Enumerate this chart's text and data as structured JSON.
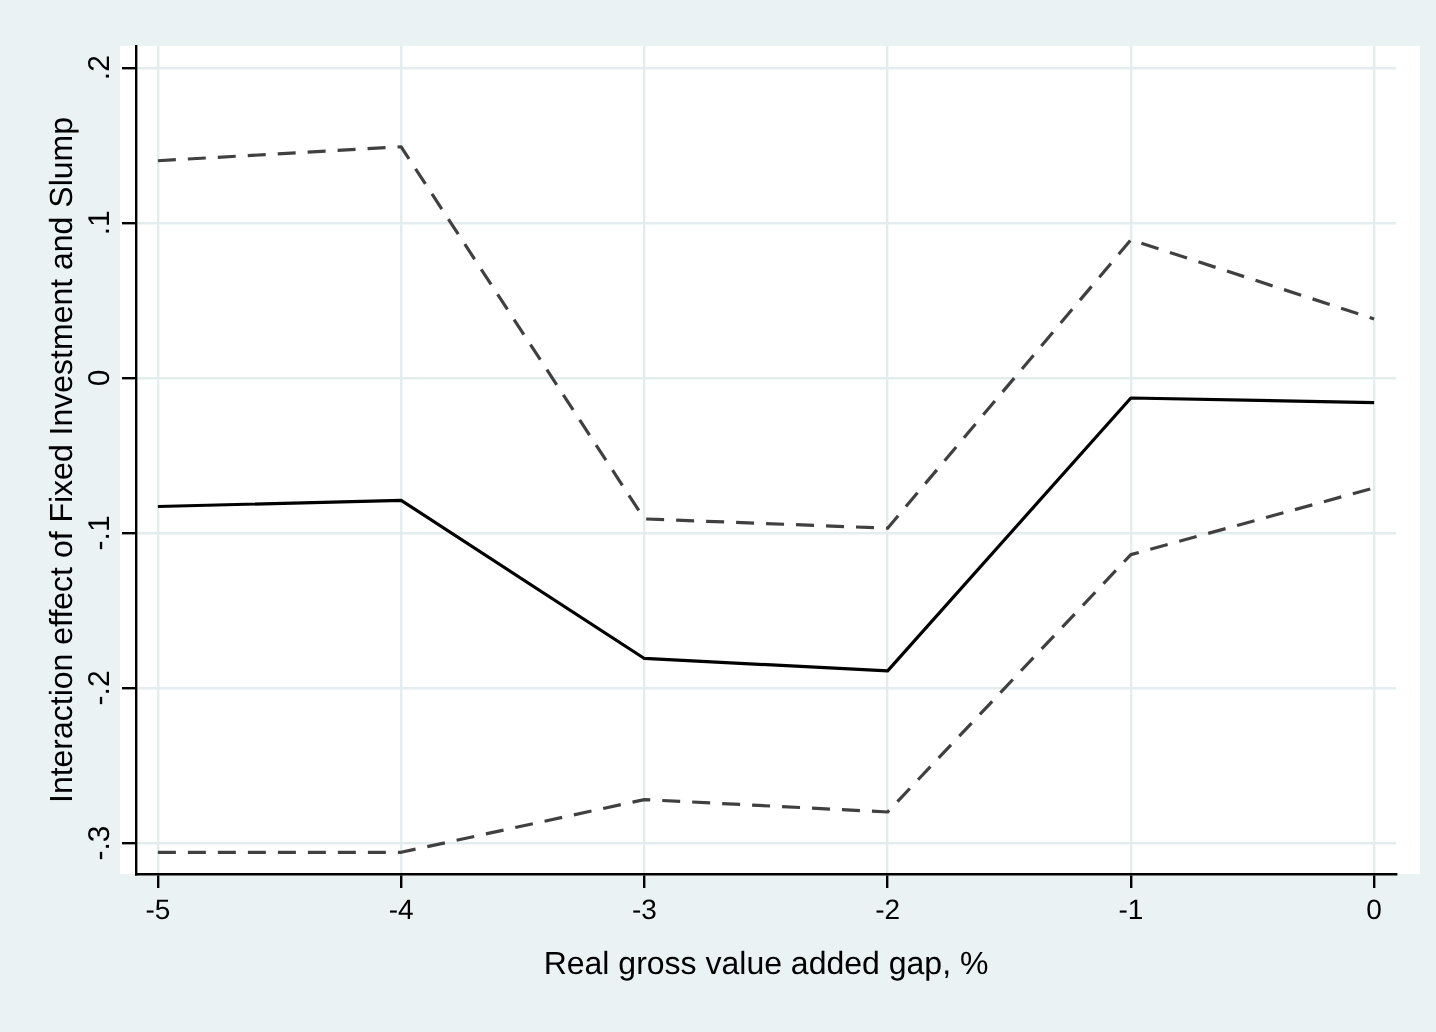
{
  "chart_data": {
    "type": "line",
    "xlabel": "Real gross value added gap, %",
    "ylabel": "Interaction effect of Fixed Investment and Slump",
    "x": [
      -5,
      -4,
      -3,
      -2,
      -1,
      0
    ],
    "series": [
      {
        "color": "#000000",
        "line_style": "solid",
        "values": [
          -0.083,
          -0.079,
          -0.181,
          -0.189,
          -0.013,
          -0.016
        ]
      },
      {
        "color": "#404040",
        "line_style": "dashed",
        "values": [
          0.14,
          0.149,
          -0.091,
          -0.097,
          0.089,
          0.038
        ]
      },
      {
        "color": "#404040",
        "line_style": "dashed",
        "values": [
          -0.306,
          -0.306,
          -0.272,
          -0.28,
          -0.114,
          -0.071
        ]
      }
    ],
    "xlim": [
      -5.09,
      0.09
    ],
    "xticks": [
      -5,
      -4,
      -3,
      -2,
      -1,
      0
    ],
    "ylim": [
      -0.32,
      0.214
    ],
    "yticks": [
      {
        "value": -0.3,
        "label": "-.3"
      },
      {
        "value": -0.2,
        "label": "-.2"
      },
      {
        "value": -0.1,
        "label": "-.1"
      },
      0,
      {
        "value": 0.1,
        "label": ".1"
      },
      {
        "value": 0.2,
        "label": ".2"
      }
    ],
    "grid": true,
    "legend": false,
    "marker": "none"
  }
}
